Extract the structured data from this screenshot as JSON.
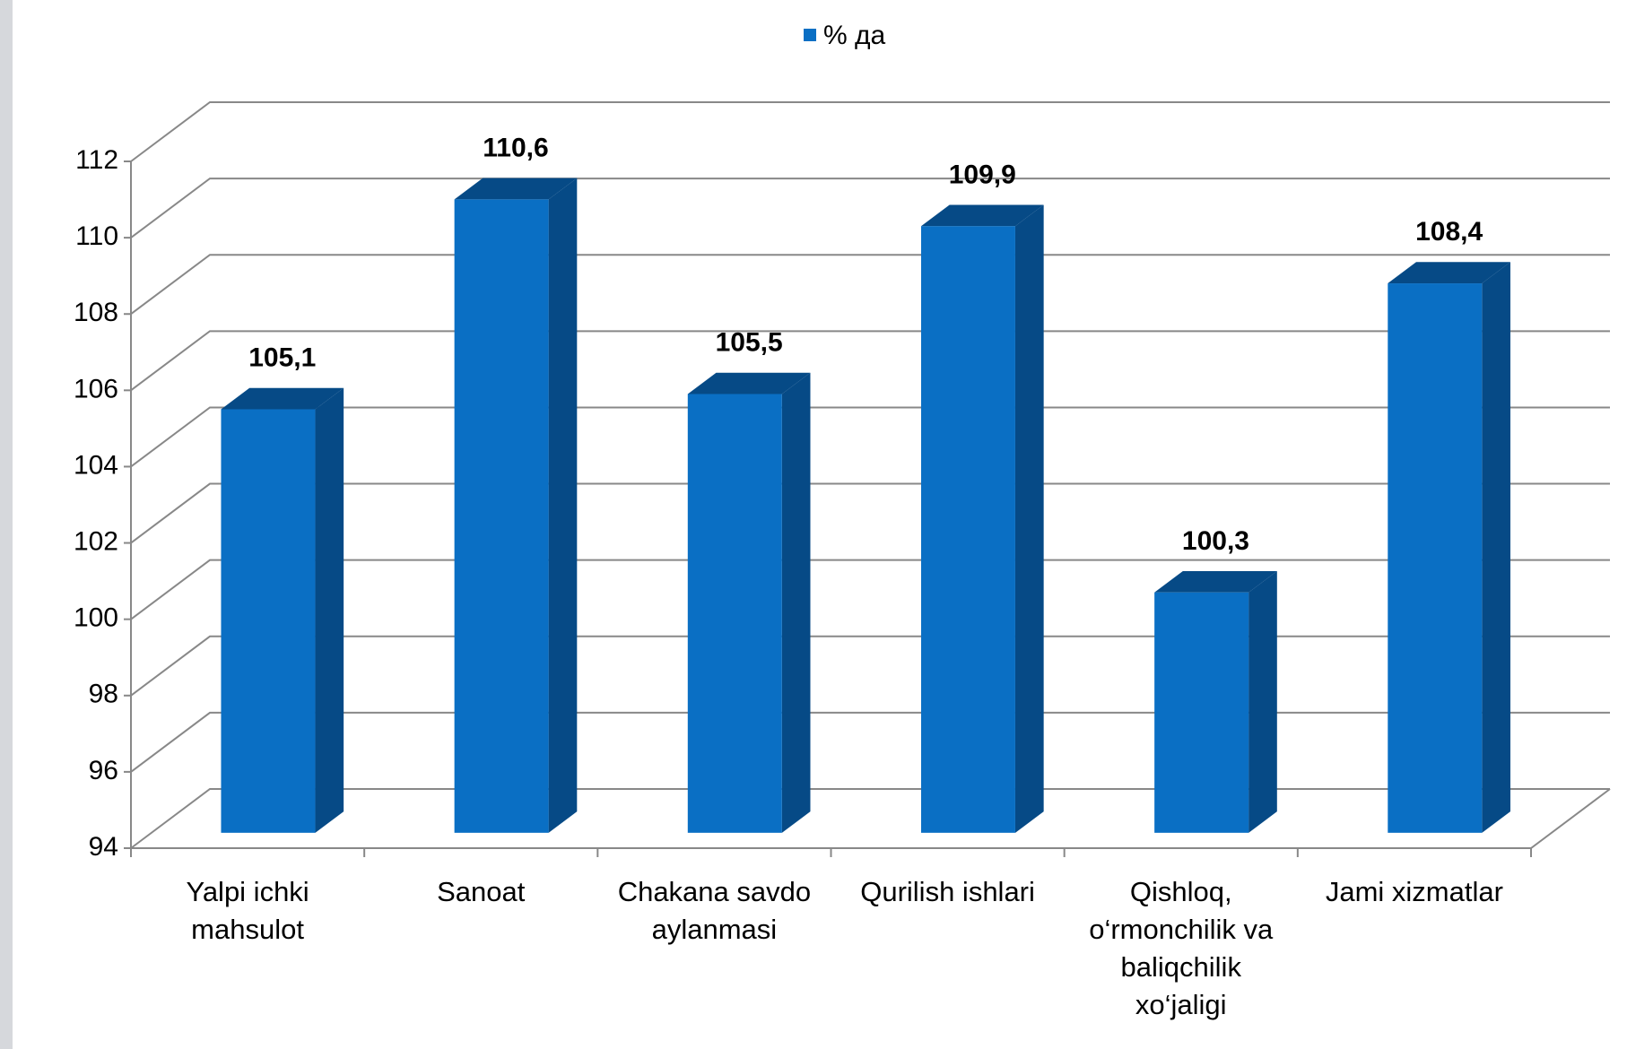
{
  "chart_data": {
    "type": "bar3d",
    "legend": "% да",
    "categories": [
      "Yalpi ichki mahsulot",
      "Sanoat",
      "Chakana savdo aylanmasi",
      "Qurilish ishlari",
      "Qishloq, o‘rmonchilik va baliqchilik xo‘jaligi",
      "Jami xizmatlar"
    ],
    "values": [
      105.1,
      110.6,
      105.5,
      109.9,
      100.3,
      108.4
    ],
    "value_labels": [
      "105,1",
      "110,6",
      "105,5",
      "109,9",
      "100,3",
      "108,4"
    ],
    "color": "#0a6fc4",
    "side_color": "#064a86",
    "ylim": [
      94,
      112
    ],
    "yticks": [
      94,
      96,
      98,
      100,
      102,
      104,
      106,
      108,
      110,
      112
    ],
    "grid": true
  }
}
